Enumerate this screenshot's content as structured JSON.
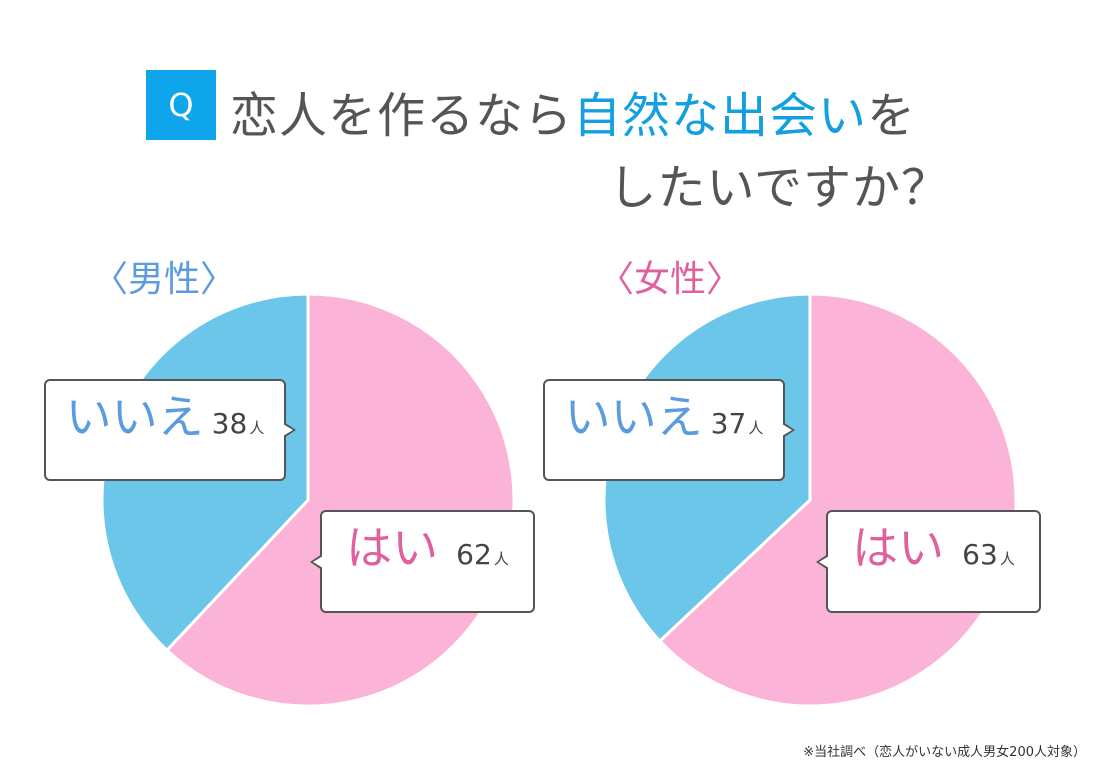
{
  "header": {
    "q_badge": "Q",
    "title_line1_prefix": "恋人を作るなら",
    "title_line1_highlight": "自然な出会い",
    "title_line1_suffix": "を",
    "title_line2": "したいですか？"
  },
  "colors": {
    "q_badge": "#0ea5ea",
    "highlight": "#14a0e0",
    "yes_slice": "#fbb3d8",
    "no_slice": "#6cc6ea",
    "male_label": "#5b9be0",
    "female_label": "#e0609e",
    "no_text": "#5b9be0",
    "yes_text": "#e0609e"
  },
  "charts": [
    {
      "group_label": "〈男性〉",
      "no": {
        "label": "いいえ",
        "value": "38",
        "unit": "人"
      },
      "yes": {
        "label": "はい",
        "value": "62",
        "unit": "人"
      }
    },
    {
      "group_label": "〈女性〉",
      "no": {
        "label": "いいえ",
        "value": "37",
        "unit": "人"
      },
      "yes": {
        "label": "はい",
        "value": "63",
        "unit": "人"
      }
    }
  ],
  "footnote": "※当社調べ（恋人がいない成人男女200人対象）",
  "chart_data": [
    {
      "type": "pie",
      "title": "男性",
      "categories": [
        "はい",
        "いいえ"
      ],
      "values": [
        62,
        38
      ],
      "unit": "人",
      "colors": [
        "#fbb3d8",
        "#6cc6ea"
      ]
    },
    {
      "type": "pie",
      "title": "女性",
      "categories": [
        "はい",
        "いいえ"
      ],
      "values": [
        63,
        37
      ],
      "unit": "人",
      "colors": [
        "#fbb3d8",
        "#6cc6ea"
      ]
    }
  ]
}
